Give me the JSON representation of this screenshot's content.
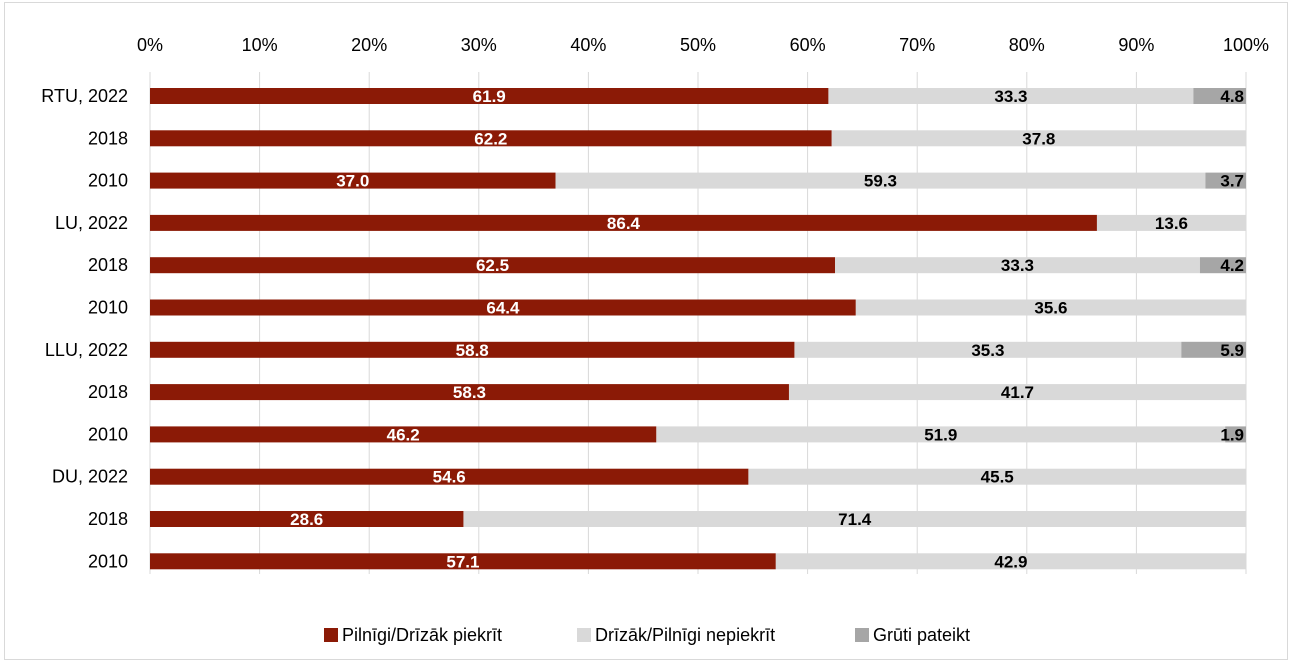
{
  "chart_data": {
    "type": "bar",
    "orientation": "horizontal",
    "stacked": "percent",
    "x_ticks": [
      "0%",
      "10%",
      "20%",
      "30%",
      "40%",
      "50%",
      "60%",
      "70%",
      "80%",
      "90%",
      "100%"
    ],
    "xlim": [
      0,
      100
    ],
    "x_axis_position": "top",
    "grid": "vertical",
    "legend_position": "bottom",
    "categories": [
      "RTU, 2022",
      "2018",
      "2010",
      "LU, 2022",
      "2018",
      "2010",
      "LLU, 2022",
      "2018",
      "2010",
      "DU, 2022",
      "2018",
      "2010"
    ],
    "series": [
      {
        "name": "Pilnīgi/Drīzāk piekrīt",
        "color": "#8b1a06",
        "label_color": "#ffffff",
        "values": [
          61.9,
          62.2,
          37.0,
          86.4,
          62.5,
          64.4,
          58.8,
          58.3,
          46.2,
          54.6,
          28.6,
          57.1
        ],
        "labels": [
          "61.9",
          "62.2",
          "37.0",
          "86.4",
          "62.5",
          "64.4",
          "58.8",
          "58.3",
          "46.2",
          "54.6",
          "28.6",
          "57.1"
        ]
      },
      {
        "name": "Drīzāk/Pilnīgi nepiekrīt",
        "color": "#d9d9d9",
        "label_color": "#000000",
        "values": [
          33.3,
          37.8,
          59.3,
          13.6,
          33.3,
          35.6,
          35.3,
          41.7,
          51.9,
          45.5,
          71.4,
          42.9
        ],
        "labels": [
          "33.3",
          "37.8",
          "59.3",
          "13.6",
          "33.3",
          "35.6",
          "35.3",
          "41.7",
          "51.9",
          "45.5",
          "71.4",
          "42.9"
        ]
      },
      {
        "name": "Grūti pateikt",
        "color": "#a6a6a6",
        "label_color": "#000000",
        "values": [
          4.8,
          0,
          3.7,
          0,
          4.2,
          0,
          5.9,
          0,
          1.9,
          0,
          0,
          0
        ],
        "labels": [
          "4.8",
          "",
          "3.7",
          "",
          "4.2",
          "",
          "5.9",
          "",
          "1.9",
          "",
          "",
          ""
        ]
      }
    ]
  }
}
